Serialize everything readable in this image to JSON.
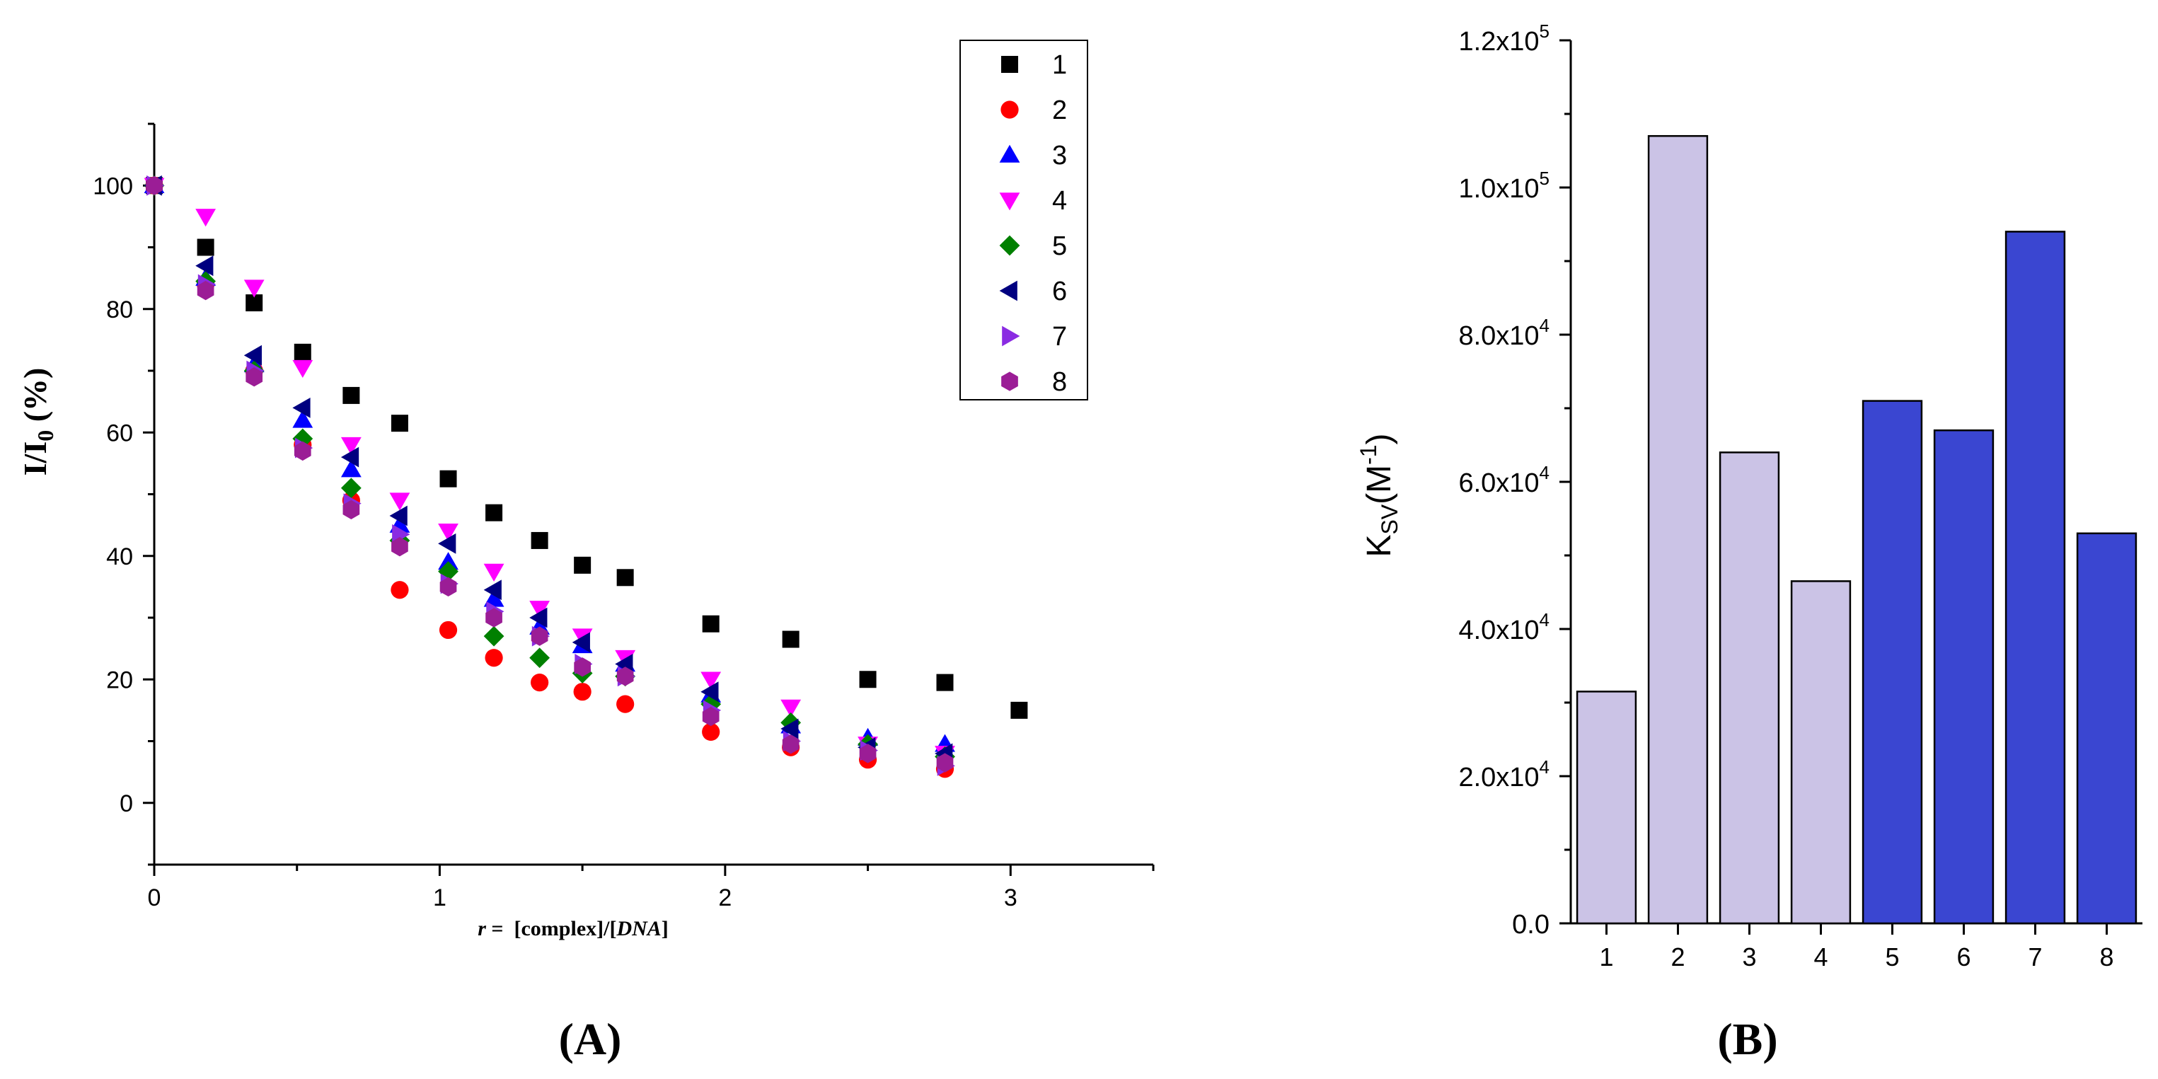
{
  "panel_labels": {
    "a": "(A)",
    "b": "(B)"
  },
  "chart_data": [
    {
      "type": "scatter",
      "panel": "(A)",
      "xlabel": {
        "var": "r",
        "eq": " =  ",
        "part1": "[complex]/[",
        "part2": "DNA",
        "part3": "]"
      },
      "ylabel": {
        "main": "I/I",
        "sub": "0",
        "rest": " (%)"
      },
      "xlim": [
        0,
        3.5
      ],
      "ylim": [
        -10,
        110
      ],
      "xticks": [
        0,
        1,
        2,
        3
      ],
      "yticks": [
        0,
        20,
        40,
        60,
        80,
        100
      ],
      "legend_position": "top-right",
      "series": [
        {
          "name": "1",
          "marker": "square",
          "color": "#000000",
          "x": [
            0,
            0.18,
            0.35,
            0.52,
            0.69,
            0.86,
            1.03,
            1.19,
            1.35,
            1.5,
            1.65,
            1.95,
            2.23,
            2.5,
            2.77,
            3.03
          ],
          "y": [
            100,
            90,
            81,
            73,
            66,
            61.5,
            52.5,
            47,
            42.5,
            38.5,
            36.5,
            29,
            26.5,
            20,
            19.5,
            15
          ]
        },
        {
          "name": "2",
          "marker": "circle",
          "color": "#ff0000",
          "x": [
            0,
            0.18,
            0.35,
            0.52,
            0.69,
            0.86,
            1.03,
            1.19,
            1.35,
            1.5,
            1.65,
            1.95,
            2.23,
            2.5,
            2.77
          ],
          "y": [
            100,
            84,
            70,
            58,
            49,
            34.5,
            28,
            23.5,
            19.5,
            18,
            16,
            11.5,
            9,
            7,
            5.5
          ]
        },
        {
          "name": "3",
          "marker": "triangle-up",
          "color": "#0000ff",
          "x": [
            0,
            0.18,
            0.35,
            0.52,
            0.69,
            0.86,
            1.03,
            1.19,
            1.35,
            1.5,
            1.65,
            1.95,
            2.23,
            2.5,
            2.77
          ],
          "y": [
            100,
            85,
            71,
            62,
            54,
            45,
            39,
            33,
            28.5,
            25.5,
            22.5,
            17.5,
            12.5,
            10.5,
            9.5
          ]
        },
        {
          "name": "4",
          "marker": "triangle-down",
          "color": "#ff00ff",
          "x": [
            0,
            0.18,
            0.35,
            0.52,
            0.69,
            0.86,
            1.03,
            1.19,
            1.35,
            1.5,
            1.65,
            1.95,
            2.23,
            2.5,
            2.77
          ],
          "y": [
            100,
            95,
            83.5,
            70.5,
            58,
            49,
            44,
            37.5,
            31.5,
            27,
            23.5,
            20,
            15.5,
            9.5,
            8
          ]
        },
        {
          "name": "5",
          "marker": "diamond",
          "color": "#008000",
          "x": [
            0,
            0.18,
            0.35,
            0.52,
            0.69,
            0.86,
            1.03,
            1.19,
            1.35,
            1.5,
            1.65,
            1.95,
            2.23,
            2.5,
            2.77
          ],
          "y": [
            100,
            84.5,
            70,
            59,
            51,
            42.5,
            37.5,
            27,
            23.5,
            21,
            20.5,
            16,
            13,
            9.5,
            7.5
          ]
        },
        {
          "name": "6",
          "marker": "triangle-left",
          "color": "#000080",
          "x": [
            0,
            0.18,
            0.35,
            0.52,
            0.69,
            0.86,
            1.03,
            1.19,
            1.35,
            1.5,
            1.65,
            1.95,
            2.23,
            2.5,
            2.77
          ],
          "y": [
            100,
            87,
            72.5,
            64,
            56,
            46.5,
            42,
            34.5,
            30,
            26,
            22.5,
            18,
            12,
            9,
            8
          ]
        },
        {
          "name": "7",
          "marker": "triangle-right",
          "color": "#8a2be2",
          "x": [
            0,
            0.18,
            0.35,
            0.52,
            0.69,
            0.86,
            1.03,
            1.19,
            1.35,
            1.5,
            1.65,
            1.95,
            2.23,
            2.5,
            2.77
          ],
          "y": [
            100,
            84,
            70,
            57.5,
            48.5,
            43.5,
            35.5,
            31,
            27,
            22.5,
            20.5,
            15,
            10,
            8.5,
            6
          ]
        },
        {
          "name": "8",
          "marker": "hexagon",
          "color": "#9b1d96",
          "x": [
            0,
            0.18,
            0.35,
            0.52,
            0.69,
            0.86,
            1.03,
            1.19,
            1.35,
            1.5,
            1.65,
            1.95,
            2.23,
            2.5,
            2.77
          ],
          "y": [
            100,
            83,
            69,
            57,
            47.5,
            41.5,
            35,
            30,
            27,
            22,
            20.5,
            14,
            9.5,
            8,
            6.5
          ]
        }
      ]
    },
    {
      "type": "bar",
      "panel": "(B)",
      "ylabel": {
        "main": "K",
        "sub": "SV",
        "rest": "(M",
        "sup": "-1",
        "end": ")"
      },
      "categories": [
        "1",
        "2",
        "3",
        "4",
        "5",
        "6",
        "7",
        "8"
      ],
      "values": [
        31500,
        107000,
        64000,
        46500,
        71000,
        67000,
        94000,
        53000
      ],
      "colors": [
        "#cbc3e6",
        "#cbc3e6",
        "#cbc3e6",
        "#cbc3e6",
        "#3a46d1",
        "#3a46d1",
        "#3a46d1",
        "#3a46d1"
      ],
      "ylim": [
        0,
        120000
      ],
      "yticks": [
        {
          "value": 0,
          "mant": "0.0",
          "exp": ""
        },
        {
          "value": 20000,
          "mant": "2.0x10",
          "exp": "4"
        },
        {
          "value": 40000,
          "mant": "4.0x10",
          "exp": "4"
        },
        {
          "value": 60000,
          "mant": "6.0x10",
          "exp": "4"
        },
        {
          "value": 80000,
          "mant": "8.0x10",
          "exp": "4"
        },
        {
          "value": 100000,
          "mant": "1.0x10",
          "exp": "5"
        },
        {
          "value": 120000,
          "mant": "1.2x10",
          "exp": "5"
        }
      ]
    }
  ]
}
